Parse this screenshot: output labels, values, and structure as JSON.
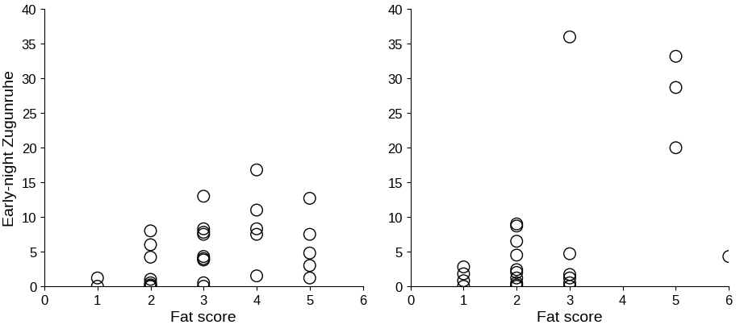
{
  "chart_data": [
    {
      "type": "scatter",
      "x": [
        1,
        1,
        2,
        2,
        2,
        2,
        2,
        2,
        2,
        2,
        3,
        3,
        3,
        3,
        3,
        3,
        3,
        3,
        3,
        4,
        4,
        4,
        4,
        4,
        5,
        5,
        5,
        5,
        5
      ],
      "values": [
        1.2,
        0,
        8,
        6,
        4.2,
        1,
        0.5,
        0.2,
        0,
        0,
        13,
        8.3,
        7.8,
        7.5,
        4.3,
        3.8,
        4,
        0.5,
        0,
        16.8,
        11,
        8.3,
        7.5,
        1.5,
        12.7,
        7.5,
        4.8,
        3,
        1.2
      ],
      "xlabel": "Fat score",
      "ylabel": "Early-night Zugunruhe",
      "xlim": [
        0,
        6
      ],
      "ylim": [
        0,
        40
      ],
      "xticks": [
        0,
        1,
        2,
        3,
        4,
        5,
        6
      ],
      "yticks": [
        0,
        5,
        10,
        15,
        20,
        25,
        30,
        35,
        40
      ],
      "color": "#000000",
      "marker": "circle"
    },
    {
      "type": "scatter",
      "x": [
        1,
        1,
        1,
        1,
        2,
        2,
        2,
        2,
        2,
        2,
        2,
        2,
        2,
        2,
        3,
        3,
        3,
        3,
        3,
        3,
        5,
        5,
        5,
        6
      ],
      "values": [
        2.8,
        1.8,
        0.8,
        0,
        9,
        8.7,
        6.5,
        4.5,
        2.4,
        2,
        1.2,
        0.5,
        0.2,
        0,
        36,
        4.7,
        1.7,
        1.2,
        0.5,
        0,
        33.2,
        28.7,
        20,
        4.3
      ],
      "xlabel": "Fat score",
      "xlim": [
        0,
        6
      ],
      "ylim": [
        0,
        40
      ],
      "xticks": [
        0,
        1,
        2,
        3,
        4,
        5,
        6
      ],
      "yticks": [
        0,
        5,
        10,
        15,
        20,
        25,
        30,
        35,
        40
      ],
      "color": "#000000",
      "marker": "circle"
    }
  ]
}
